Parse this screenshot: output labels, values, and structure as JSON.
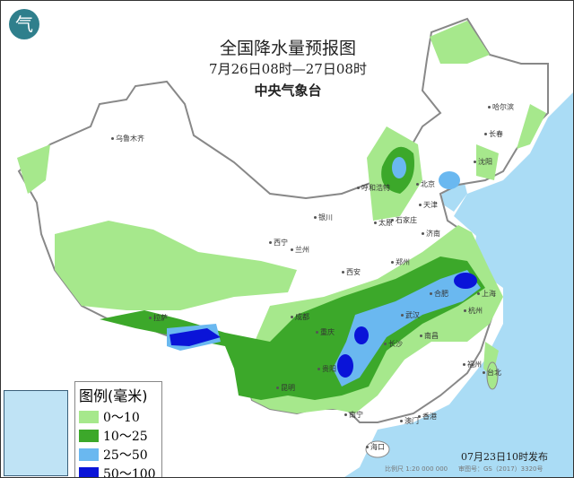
{
  "title": "全国降水量预报图",
  "period": "7月26日08时—27日08时",
  "issuer": "中央气象台",
  "logo_icon": "cma-logo",
  "legend": {
    "title": "图例(毫米)",
    "items": [
      {
        "label": "0～10",
        "color": "#a6e88c"
      },
      {
        "label": "10～25",
        "color": "#3ca82a"
      },
      {
        "label": "25～50",
        "color": "#6ab8f0"
      },
      {
        "label": "50～100",
        "color": "#0a14d8"
      }
    ]
  },
  "cities": [
    "乌鲁木齐",
    "哈尔滨",
    "长春",
    "沈阳",
    "呼和浩特",
    "北京",
    "天津",
    "石家庄",
    "太原",
    "银川",
    "西宁",
    "兰州",
    "济南",
    "郑州",
    "西安",
    "合肥",
    "上海",
    "武汉",
    "杭州",
    "成都",
    "重庆",
    "拉萨",
    "长沙",
    "南昌",
    "福州",
    "贵阳",
    "昆明",
    "台北",
    "南宁",
    "澳门",
    "香港",
    "海口"
  ],
  "published": "07月23日10时发布",
  "scale": "比例尺 1:20 000 000",
  "review_no": "审图号：GS（2017）3320号",
  "colors": {
    "sea": "#aadcf5",
    "border": "#888888"
  }
}
